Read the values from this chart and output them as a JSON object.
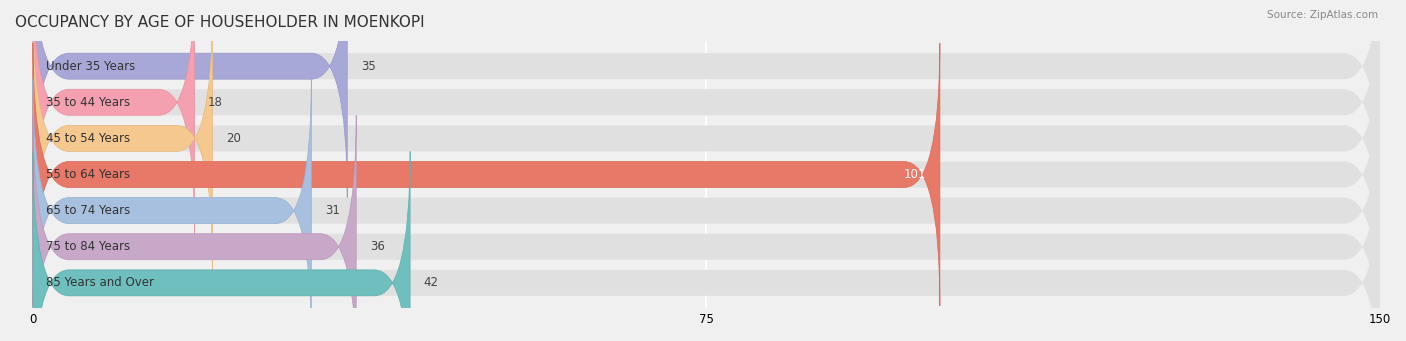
{
  "title": "OCCUPANCY BY AGE OF HOUSEHOLDER IN MOENKOPI",
  "source": "Source: ZipAtlas.com",
  "categories": [
    "Under 35 Years",
    "35 to 44 Years",
    "45 to 54 Years",
    "55 to 64 Years",
    "65 to 74 Years",
    "75 to 84 Years",
    "85 Years and Over"
  ],
  "values": [
    35,
    18,
    20,
    101,
    31,
    36,
    42
  ],
  "bar_colors": [
    "#a8a8d8",
    "#f4a0b0",
    "#f5c890",
    "#e87868",
    "#a8c0e0",
    "#c8a8c8",
    "#70bfbf"
  ],
  "bar_edge_colors": [
    "#9898c8",
    "#e890a0",
    "#e5b880",
    "#d86858",
    "#98b0d0",
    "#b898b8",
    "#60afaf"
  ],
  "background_color": "#f0f0f0",
  "bar_bg_color": "#e8e8e8",
  "xlim": [
    0,
    150
  ],
  "xticks": [
    0,
    75,
    150
  ],
  "title_fontsize": 11,
  "label_fontsize": 8.5,
  "value_fontsize": 8.5
}
